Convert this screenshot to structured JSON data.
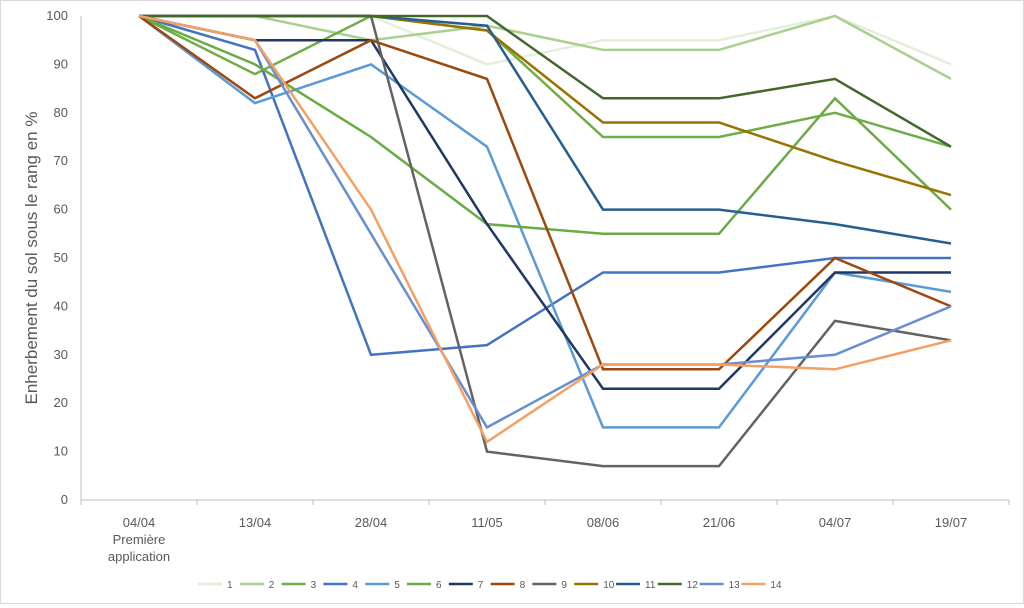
{
  "chart_data": {
    "type": "line",
    "ylabel": "Enherbement  du sol sous le rang en %",
    "xlabel": "",
    "ylim": [
      0,
      100
    ],
    "yticks": [
      0,
      10,
      20,
      30,
      40,
      50,
      60,
      70,
      80,
      90,
      100
    ],
    "grid": false,
    "legend_position": "bottom",
    "categories": [
      [
        "04/04",
        "Première",
        "application"
      ],
      [
        "13/04"
      ],
      [
        "28/04"
      ],
      [
        "11/05"
      ],
      [
        "08/06"
      ],
      [
        "21/06"
      ],
      [
        "04/07"
      ],
      [
        "19/07"
      ]
    ],
    "series": [
      {
        "name": "1",
        "color": "#e2efda",
        "values": [
          100,
          100,
          100,
          90,
          95,
          95,
          100,
          90
        ]
      },
      {
        "name": "2",
        "color": "#a9d08e",
        "values": [
          100,
          100,
          95,
          98,
          93,
          93,
          100,
          87
        ]
      },
      {
        "name": "3",
        "color": "#70ad47",
        "values": [
          100,
          88,
          100,
          97,
          75,
          75,
          80,
          73
        ]
      },
      {
        "name": "4",
        "color": "#4472c4",
        "values": [
          100,
          93,
          30,
          32,
          47,
          47,
          50,
          50
        ]
      },
      {
        "name": "5",
        "color": "#5b9bd5",
        "values": [
          100,
          82,
          90,
          73,
          15,
          15,
          47,
          43
        ]
      },
      {
        "name": "6",
        "color": "#6aab46",
        "values": [
          100,
          90,
          75,
          57,
          55,
          55,
          83,
          60
        ]
      },
      {
        "name": "7",
        "color": "#203864",
        "values": [
          100,
          95,
          95,
          57,
          23,
          23,
          47,
          47
        ]
      },
      {
        "name": "8",
        "color": "#9e480e",
        "values": [
          100,
          83,
          95,
          87,
          27,
          27,
          50,
          40
        ]
      },
      {
        "name": "9",
        "color": "#636363",
        "values": [
          100,
          100,
          100,
          10,
          7,
          7,
          37,
          33
        ]
      },
      {
        "name": "10",
        "color": "#997300",
        "values": [
          100,
          100,
          100,
          97,
          78,
          78,
          70,
          63
        ]
      },
      {
        "name": "11",
        "color": "#255e91",
        "values": [
          100,
          100,
          100,
          98,
          60,
          60,
          57,
          53
        ]
      },
      {
        "name": "12",
        "color": "#43682b",
        "values": [
          100,
          100,
          100,
          100,
          83,
          83,
          87,
          73
        ]
      },
      {
        "name": "13",
        "color": "#698ed0",
        "values": [
          100,
          95,
          55,
          15,
          28,
          28,
          30,
          40
        ]
      },
      {
        "name": "14",
        "color": "#f4a065",
        "values": [
          100,
          95,
          60,
          12,
          28,
          28,
          27,
          33
        ]
      }
    ]
  }
}
